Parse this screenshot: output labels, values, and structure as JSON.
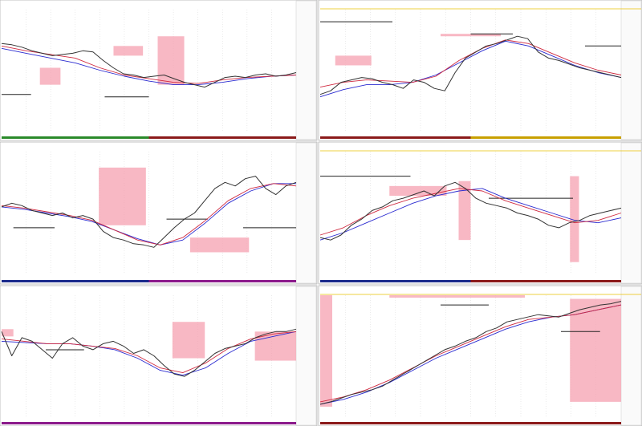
{
  "panels": [
    {
      "ylim": [
        0,
        100
      ],
      "price": [
        72,
        71,
        69,
        66,
        64,
        62,
        63,
        64,
        66,
        65,
        58,
        52,
        47,
        46,
        44,
        45,
        46,
        43,
        40,
        38,
        36,
        40,
        44,
        45,
        44,
        46,
        47,
        45,
        46,
        48
      ],
      "ma_fast": [
        70,
        66,
        63,
        60,
        52,
        46,
        43,
        40,
        39,
        42,
        44,
        45,
        46
      ],
      "ma_slow": [
        68,
        64,
        60,
        56,
        50,
        45,
        41,
        38,
        38,
        40,
        43,
        45,
        46
      ]
    },
    {
      "ylim": [
        0,
        100
      ],
      "price": [
        30,
        33,
        40,
        42,
        44,
        43,
        40,
        38,
        35,
        42,
        40,
        35,
        33,
        48,
        60,
        65,
        70,
        72,
        75,
        78,
        76,
        65,
        60,
        58,
        55,
        52,
        50,
        48,
        46,
        44
      ],
      "ma_fast": [
        36,
        40,
        42,
        41,
        40,
        45,
        58,
        68,
        75,
        72,
        64,
        56,
        50,
        46
      ],
      "ma_slow": [
        28,
        34,
        38,
        38,
        40,
        46,
        56,
        66,
        74,
        70,
        62,
        54,
        48,
        44
      ]
    },
    {
      "ylim": [
        0,
        100
      ],
      "price": [
        55,
        58,
        56,
        52,
        50,
        48,
        50,
        46,
        48,
        45,
        35,
        30,
        28,
        25,
        24,
        22,
        30,
        38,
        45,
        50,
        60,
        70,
        75,
        72,
        78,
        80,
        70,
        65,
        72,
        75
      ],
      "ma_fast": [
        56,
        54,
        51,
        48,
        44,
        36,
        28,
        24,
        30,
        44,
        60,
        70,
        74,
        72
      ],
      "ma_slow": [
        55,
        53,
        50,
        47,
        43,
        36,
        29,
        24,
        28,
        42,
        58,
        68,
        74,
        74
      ]
    },
    {
      "ylim": [
        0,
        100
      ],
      "price": [
        30,
        28,
        32,
        40,
        45,
        52,
        55,
        60,
        62,
        65,
        68,
        64,
        72,
        75,
        70,
        62,
        58,
        56,
        54,
        50,
        48,
        45,
        40,
        38,
        42,
        44,
        48,
        50,
        52,
        54
      ],
      "ma_fast": [
        32,
        38,
        48,
        56,
        62,
        66,
        70,
        68,
        60,
        54,
        48,
        42,
        44,
        50
      ],
      "ma_slow": [
        28,
        34,
        42,
        50,
        58,
        64,
        68,
        70,
        62,
        56,
        50,
        44,
        42,
        46
      ]
    },
    {
      "ylim": [
        0,
        100
      ],
      "price": [
        70,
        50,
        65,
        62,
        55,
        48,
        60,
        65,
        58,
        55,
        60,
        62,
        58,
        52,
        55,
        50,
        42,
        35,
        33,
        38,
        45,
        52,
        56,
        58,
        60,
        65,
        68,
        70,
        70,
        72
      ],
      "ma_fast": [
        64,
        62,
        60,
        60,
        58,
        56,
        50,
        40,
        36,
        44,
        56,
        64,
        68,
        70
      ],
      "ma_slow": [
        62,
        61,
        60,
        60,
        58,
        55,
        48,
        38,
        34,
        40,
        52,
        62,
        66,
        70
      ]
    },
    {
      "ylim": [
        0,
        100
      ],
      "price": [
        10,
        12,
        15,
        18,
        20,
        22,
        25,
        30,
        35,
        40,
        45,
        50,
        55,
        58,
        62,
        65,
        70,
        73,
        78,
        80,
        82,
        84,
        83,
        82,
        85,
        88,
        90,
        92,
        93,
        95
      ],
      "ma_fast": [
        12,
        16,
        22,
        30,
        40,
        50,
        58,
        66,
        74,
        80,
        82,
        84,
        88,
        92
      ],
      "ma_slow": [
        10,
        14,
        20,
        28,
        38,
        48,
        56,
        64,
        72,
        78,
        82,
        84,
        88,
        92
      ]
    }
  ]
}
